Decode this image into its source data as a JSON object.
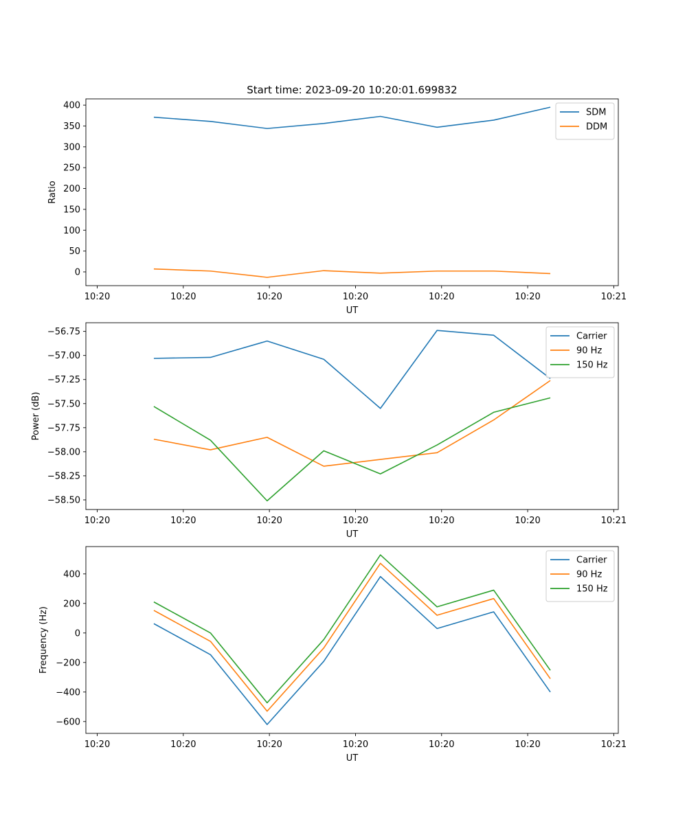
{
  "chart_data": [
    {
      "type": "line",
      "title": "Start time: 2023-09-20 10:20:01.699832",
      "xlabel": "UT",
      "ylabel": "Ratio",
      "x": [
        0.5,
        1.0,
        1.5,
        2.0,
        2.5,
        3.0,
        3.5,
        4.0
      ],
      "xlim": [
        -0.1,
        4.6
      ],
      "xticks": [
        0,
        0.76,
        1.52,
        2.28,
        3.04,
        3.8,
        4.56
      ],
      "xtick_labels": [
        "10:20",
        "10:20",
        "10:20",
        "10:20",
        "10:20",
        "10:20",
        "10:21"
      ],
      "ylim": [
        -33,
        415
      ],
      "yticks": [
        0,
        50,
        100,
        150,
        200,
        250,
        300,
        350,
        400
      ],
      "ytick_labels": [
        "0",
        "50",
        "100",
        "150",
        "200",
        "250",
        "300",
        "350",
        "400"
      ],
      "legend_position": "top-right",
      "series": [
        {
          "name": "SDM",
          "color": "#1f77b4",
          "values": [
            371,
            361,
            344,
            356,
            373,
            347,
            364,
            395
          ]
        },
        {
          "name": "DDM",
          "color": "#ff7f0e",
          "values": [
            7,
            2,
            -13,
            3,
            -3,
            2,
            2,
            -4
          ]
        }
      ]
    },
    {
      "type": "line",
      "title": "",
      "xlabel": "UT",
      "ylabel": "Power (dB)",
      "x": [
        0.5,
        1.0,
        1.5,
        2.0,
        2.5,
        3.0,
        3.5,
        4.0
      ],
      "xlim": [
        -0.1,
        4.6
      ],
      "xticks": [
        0,
        0.76,
        1.52,
        2.28,
        3.04,
        3.8,
        4.56
      ],
      "xtick_labels": [
        "10:20",
        "10:20",
        "10:20",
        "10:20",
        "10:20",
        "10:20",
        "10:21"
      ],
      "ylim": [
        -58.6,
        -56.66
      ],
      "yticks": [
        -58.5,
        -58.25,
        -58.0,
        -57.75,
        -57.5,
        -57.25,
        -57.0,
        -56.75
      ],
      "ytick_labels": [
        "−58.50",
        "−58.25",
        "−58.00",
        "−57.75",
        "−57.50",
        "−57.25",
        "−57.00",
        "−56.75"
      ],
      "legend_position": "top-right",
      "series": [
        {
          "name": "Carrier",
          "color": "#1f77b4",
          "values": [
            -57.03,
            -57.02,
            -56.85,
            -57.04,
            -57.55,
            -56.74,
            -56.79,
            -57.24
          ]
        },
        {
          "name": "90 Hz",
          "color": "#ff7f0e",
          "values": [
            -57.87,
            -57.98,
            -57.85,
            -58.15,
            -58.08,
            -58.01,
            -57.67,
            -57.26
          ]
        },
        {
          "name": "150 Hz",
          "color": "#2ca02c",
          "values": [
            -57.53,
            -57.88,
            -58.51,
            -57.99,
            -58.23,
            -57.93,
            -57.59,
            -57.44
          ]
        }
      ]
    },
    {
      "type": "line",
      "title": "",
      "xlabel": "UT",
      "ylabel": "Frequency (Hz)",
      "x": [
        0.5,
        1.0,
        1.5,
        2.0,
        2.5,
        3.0,
        3.5,
        4.0
      ],
      "xlim": [
        -0.1,
        4.6
      ],
      "xticks": [
        0,
        0.76,
        1.52,
        2.28,
        3.04,
        3.8,
        4.56
      ],
      "xtick_labels": [
        "10:20",
        "10:20",
        "10:20",
        "10:20",
        "10:20",
        "10:20",
        "10:21"
      ],
      "ylim": [
        -680,
        585
      ],
      "yticks": [
        -600,
        -400,
        -200,
        0,
        200,
        400
      ],
      "ytick_labels": [
        "−600",
        "−400",
        "−200",
        "0",
        "200",
        "400"
      ],
      "legend_position": "top-right",
      "series": [
        {
          "name": "Carrier",
          "color": "#1f77b4",
          "values": [
            63,
            -147,
            -620,
            -192,
            382,
            30,
            143,
            -400
          ]
        },
        {
          "name": "90 Hz",
          "color": "#ff7f0e",
          "values": [
            153,
            -57,
            -530,
            -102,
            472,
            120,
            233,
            -310
          ]
        },
        {
          "name": "150 Hz",
          "color": "#2ca02c",
          "values": [
            210,
            0,
            -473,
            -45,
            529,
            177,
            290,
            -253
          ]
        }
      ]
    }
  ]
}
